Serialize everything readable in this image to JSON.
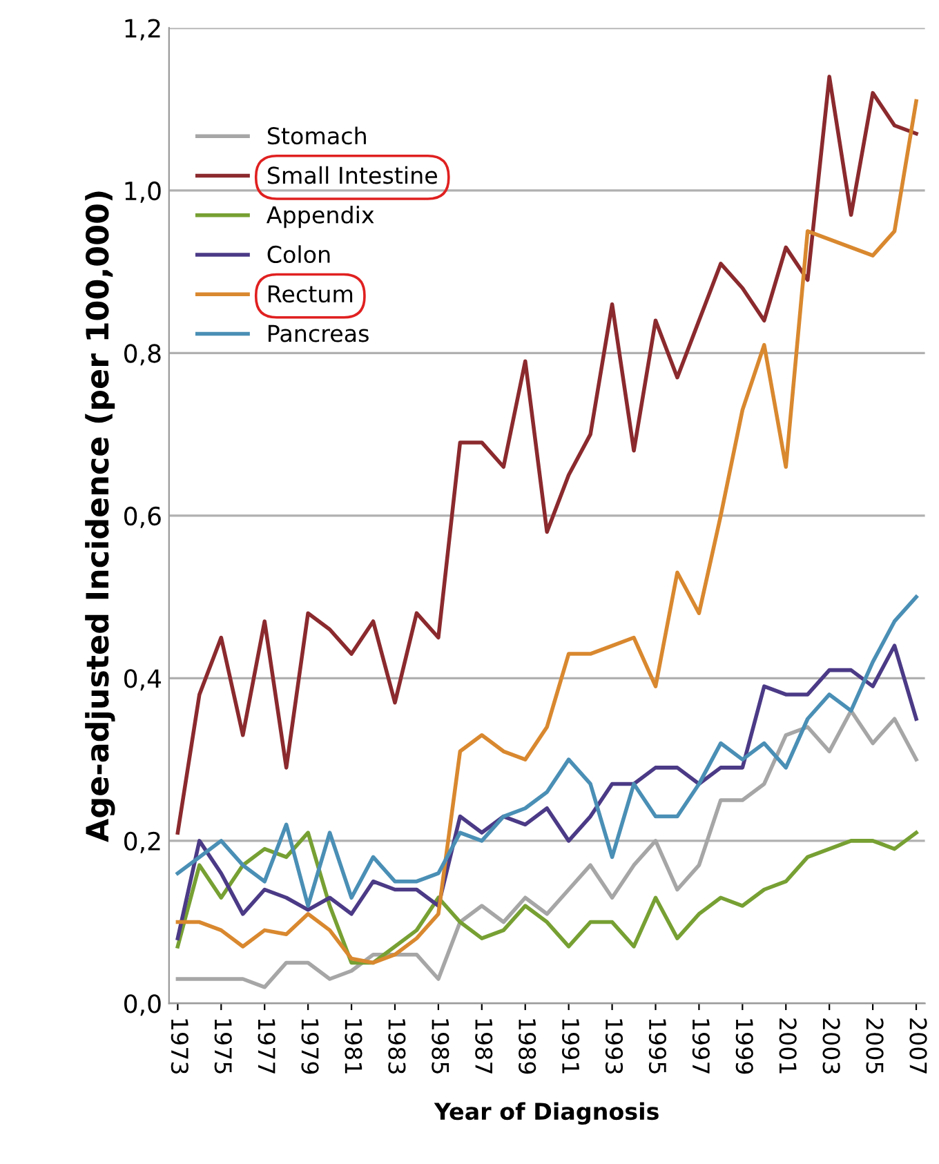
{
  "chart_data": {
    "type": "line",
    "xlabel": "Year of Diagnosis",
    "ylabel": "Age-adjusted Incidence (per 100,000)",
    "x": [
      1973,
      1974,
      1975,
      1976,
      1977,
      1978,
      1979,
      1980,
      1981,
      1982,
      1983,
      1984,
      1985,
      1986,
      1987,
      1988,
      1989,
      1990,
      1991,
      1992,
      1993,
      1994,
      1995,
      1996,
      1997,
      1998,
      1999,
      2000,
      2001,
      2002,
      2003,
      2004,
      2005,
      2006,
      2007
    ],
    "series": [
      {
        "name": "Stomach",
        "color": "#a6a6a6",
        "values": [
          0.03,
          0.03,
          0.03,
          0.03,
          0.02,
          0.05,
          0.05,
          0.03,
          0.04,
          0.06,
          0.06,
          0.06,
          0.03,
          0.1,
          0.12,
          0.1,
          0.13,
          0.11,
          0.14,
          0.17,
          0.13,
          0.17,
          0.2,
          0.14,
          0.17,
          0.25,
          0.25,
          0.27,
          0.33,
          0.34,
          0.31,
          0.36,
          0.32,
          0.35,
          0.3
        ]
      },
      {
        "name": "Small Intestine",
        "color": "#8b2a2e",
        "values": [
          0.21,
          0.38,
          0.45,
          0.33,
          0.47,
          0.29,
          0.48,
          0.46,
          0.43,
          0.47,
          0.37,
          0.48,
          0.45,
          0.69,
          0.69,
          0.66,
          0.79,
          0.58,
          0.65,
          0.7,
          0.86,
          0.68,
          0.84,
          0.77,
          0.84,
          0.91,
          0.88,
          0.84,
          0.93,
          0.89,
          1.14,
          0.97,
          1.12,
          1.08,
          1.07
        ]
      },
      {
        "name": "Appendix",
        "color": "#77a033",
        "values": [
          0.07,
          0.17,
          0.13,
          0.17,
          0.19,
          0.18,
          0.21,
          0.12,
          0.05,
          0.05,
          0.07,
          0.09,
          0.13,
          0.1,
          0.08,
          0.09,
          0.12,
          0.1,
          0.07,
          0.1,
          0.1,
          0.07,
          0.13,
          0.08,
          0.11,
          0.13,
          0.12,
          0.14,
          0.15,
          0.18,
          0.19,
          0.2,
          0.2,
          0.19,
          0.21
        ]
      },
      {
        "name": "Colon",
        "color": "#4b3a86",
        "values": [
          0.08,
          0.2,
          0.16,
          0.11,
          0.14,
          0.13,
          0.115,
          0.13,
          0.11,
          0.15,
          0.14,
          0.14,
          0.12,
          0.23,
          0.21,
          0.23,
          0.22,
          0.24,
          0.2,
          0.23,
          0.27,
          0.27,
          0.29,
          0.29,
          0.27,
          0.29,
          0.29,
          0.39,
          0.38,
          0.38,
          0.41,
          0.41,
          0.39,
          0.44,
          0.35
        ]
      },
      {
        "name": "Rectum",
        "color": "#d9882f",
        "values": [
          0.1,
          0.1,
          0.09,
          0.07,
          0.09,
          0.085,
          0.11,
          0.09,
          0.055,
          0.05,
          0.06,
          0.08,
          0.11,
          0.31,
          0.33,
          0.31,
          0.3,
          0.34,
          0.43,
          0.43,
          0.44,
          0.45,
          0.39,
          0.53,
          0.48,
          0.6,
          0.73,
          0.81,
          0.66,
          0.95,
          0.94,
          0.93,
          0.92,
          0.95,
          1.11
        ]
      },
      {
        "name": "Pancreas",
        "color": "#4a8fb5",
        "values": [
          0.16,
          0.18,
          0.2,
          0.17,
          0.15,
          0.22,
          0.12,
          0.21,
          0.13,
          0.18,
          0.15,
          0.15,
          0.16,
          0.21,
          0.2,
          0.23,
          0.24,
          0.26,
          0.3,
          0.27,
          0.18,
          0.27,
          0.23,
          0.23,
          0.27,
          0.32,
          0.3,
          0.32,
          0.29,
          0.35,
          0.38,
          0.36,
          0.42,
          0.47,
          0.5
        ]
      }
    ],
    "xlim": [
      1972.6,
      2007.4
    ],
    "xticks": [
      1973,
      1975,
      1977,
      1979,
      1981,
      1983,
      1985,
      1987,
      1989,
      1991,
      1993,
      1995,
      1997,
      1999,
      2001,
      2003,
      2005,
      2007
    ],
    "ylim": [
      0,
      1.2
    ],
    "yticks": [
      {
        "value": 0,
        "label": "0,0"
      },
      {
        "value": 0.2,
        "label": "0,2"
      },
      {
        "value": 0.4,
        "label": "0,4"
      },
      {
        "value": 0.6,
        "label": "0,6"
      },
      {
        "value": 0.8,
        "label": "0,8"
      },
      {
        "value": 1.0,
        "label": "1,0"
      },
      {
        "value": 1.2,
        "label": "1,2"
      }
    ],
    "grid": "y",
    "legend": "top left",
    "marker": "none",
    "line_style": "solid"
  }
}
